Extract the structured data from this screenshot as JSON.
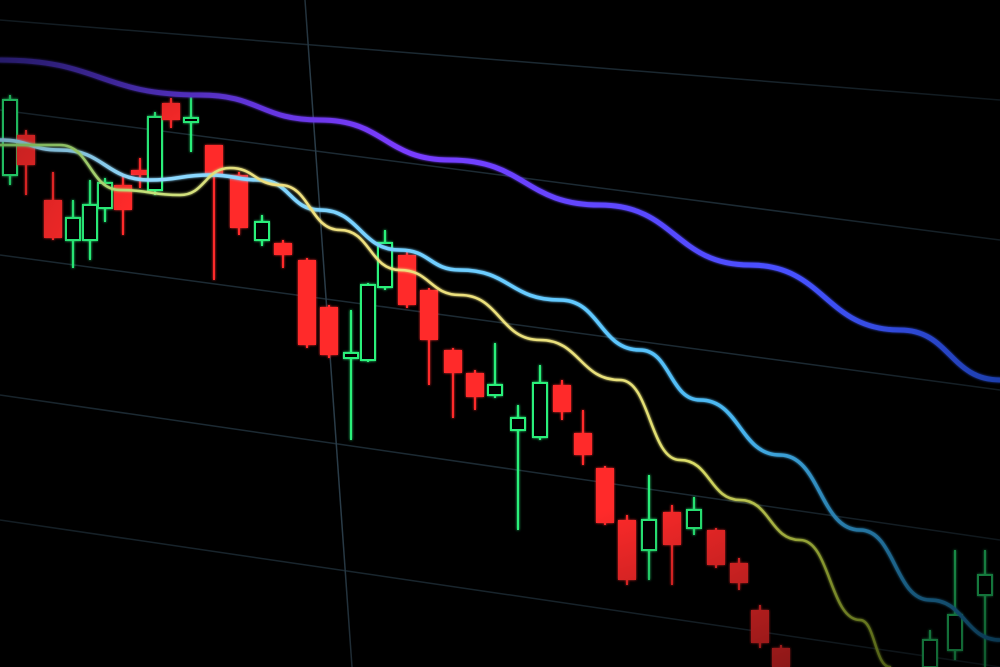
{
  "scene": {
    "subject": "candlestick-chart-on-screen",
    "colors": {
      "background": "#000000",
      "bearish_candle": "#ff2a2a",
      "bullish_candle": "#2cf07a",
      "grid": "#1c2a33",
      "ma_long_start": "#7a3cff",
      "ma_long_end": "#2b5cff",
      "ma_mid": "#5fc8ff",
      "ma_short": "#e8e07a"
    }
  }
}
